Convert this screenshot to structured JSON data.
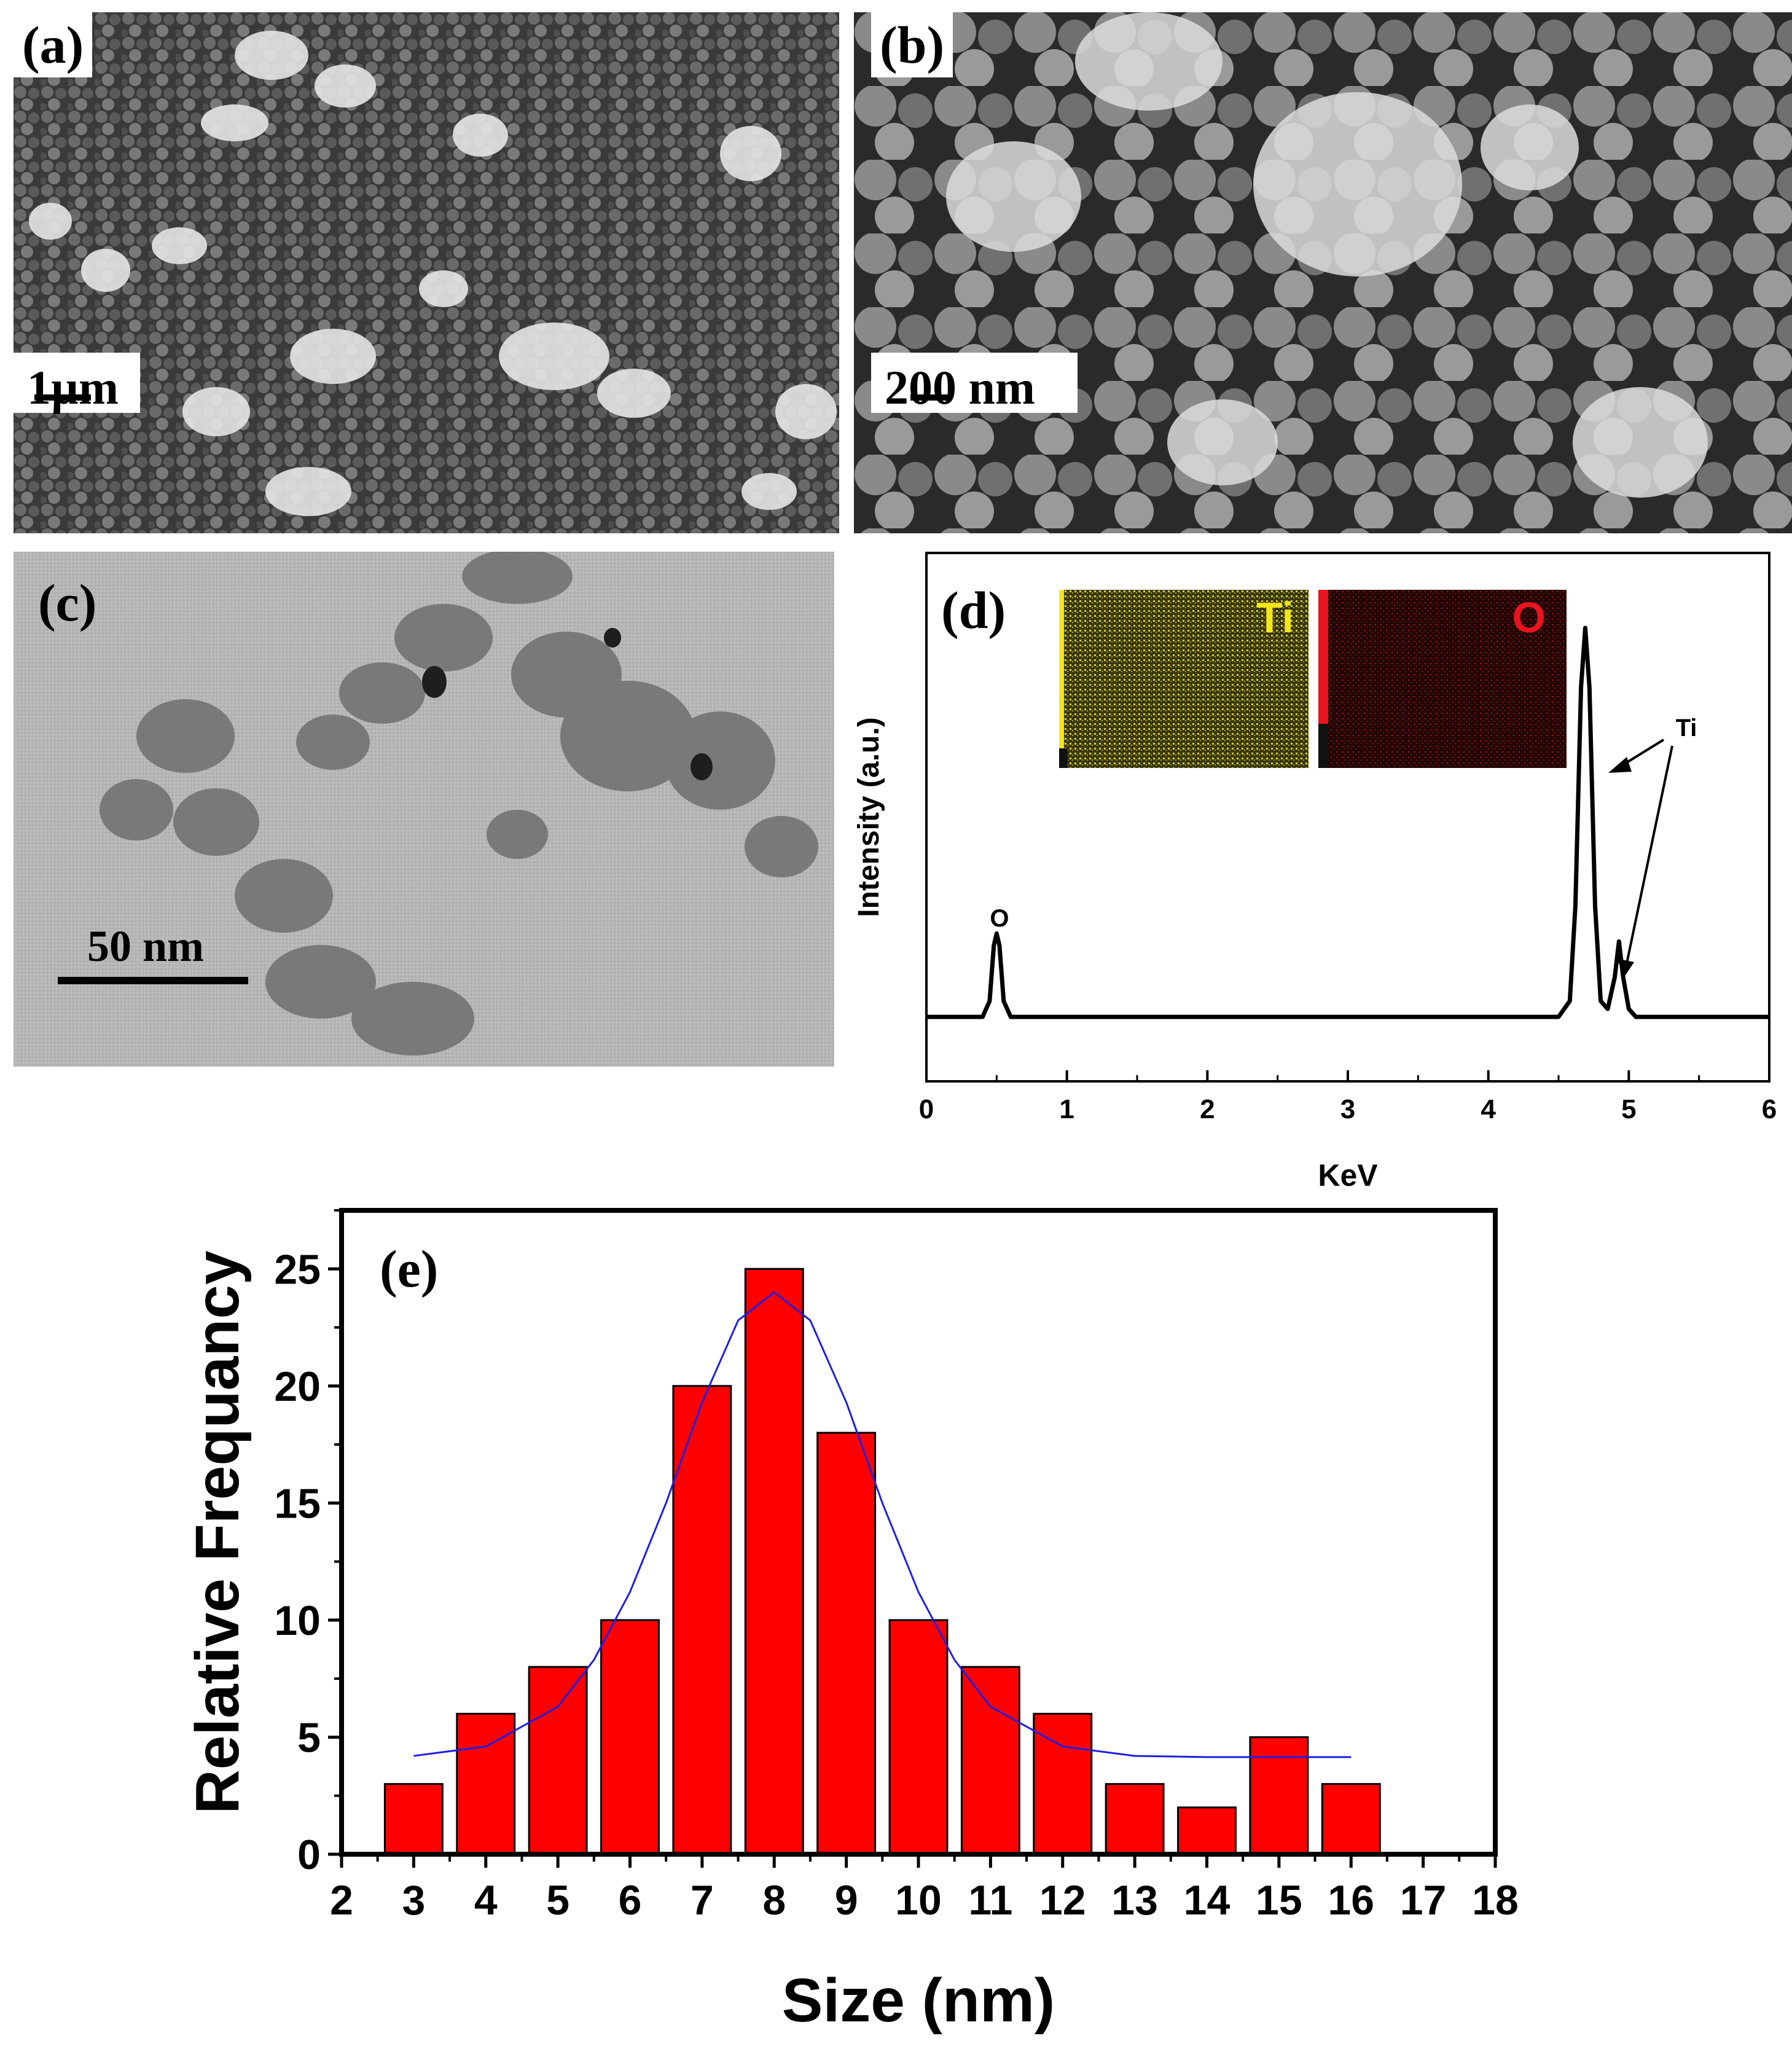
{
  "panels": {
    "a": {
      "label": "(a)",
      "scale_label": "1µm"
    },
    "b": {
      "label": "(b)",
      "scale_label": "200 nm"
    },
    "c": {
      "label": "(c)",
      "scale_label": "50 nm"
    },
    "d": {
      "label": "(d)"
    },
    "e": {
      "label": "(e)"
    }
  },
  "chart_data": [
    {
      "panel": "d",
      "type": "line",
      "xlabel": "KeV",
      "ylabel": "Intensity (a.u.)",
      "xlim": [
        0,
        6
      ],
      "x_ticks": [
        "0",
        "1",
        "2",
        "3",
        "4",
        "5",
        "6"
      ],
      "series": [
        {
          "color": "#000000",
          "x": [
            0,
            0.4,
            0.45,
            0.48,
            0.5,
            0.52,
            0.55,
            0.6,
            1.0,
            2.0,
            3.0,
            4.0,
            4.5,
            4.58,
            4.62,
            4.66,
            4.69,
            4.72,
            4.76,
            4.8,
            4.85,
            4.9,
            4.93,
            4.96,
            5.0,
            5.05,
            6.0
          ],
          "y": [
            0.02,
            0.02,
            0.06,
            0.2,
            0.23,
            0.2,
            0.06,
            0.02,
            0.02,
            0.02,
            0.02,
            0.02,
            0.02,
            0.06,
            0.3,
            0.85,
            1.0,
            0.85,
            0.3,
            0.06,
            0.04,
            0.12,
            0.21,
            0.12,
            0.04,
            0.02,
            0.02
          ]
        }
      ],
      "annotations": [
        {
          "text": "O",
          "x": 0.52
        },
        {
          "text": "Ti",
          "x": 4.7
        },
        {
          "text": "Ti",
          "x": 4.93
        }
      ],
      "insets": [
        {
          "label": "Ti",
          "color": "#f5e61a"
        },
        {
          "label": "O",
          "color": "#e8141e"
        }
      ]
    },
    {
      "panel": "e",
      "type": "bar",
      "xlabel": "Size (nm)",
      "ylabel": "Relative Frequancy",
      "xlim": [
        2,
        18
      ],
      "ylim": [
        0,
        27.5
      ],
      "x_ticks": [
        "2",
        "3",
        "4",
        "5",
        "6",
        "7",
        "8",
        "9",
        "10",
        "11",
        "12",
        "13",
        "14",
        "15",
        "16",
        "17",
        "18"
      ],
      "y_ticks": [
        "0",
        "5",
        "10",
        "15",
        "20",
        "25"
      ],
      "bar_color": "#ff0000",
      "fit_color": "#1f1fe0",
      "categories": [
        3,
        4,
        5,
        6,
        7,
        8,
        9,
        10,
        11,
        12,
        13,
        14,
        15,
        16
      ],
      "values": [
        3,
        6,
        8,
        10,
        20,
        25,
        18,
        10,
        8,
        6,
        3,
        2,
        5,
        3
      ],
      "fit": {
        "x": [
          3,
          4,
          5,
          5.5,
          6,
          6.5,
          7,
          7.5,
          8,
          8.5,
          9,
          9.5,
          10,
          10.5,
          11,
          12,
          13,
          14,
          15,
          16
        ],
        "y": [
          4.2,
          4.6,
          6.3,
          8.3,
          11.2,
          15.0,
          19.3,
          22.8,
          24.0,
          22.8,
          19.3,
          15.0,
          11.2,
          8.3,
          6.3,
          4.6,
          4.2,
          4.15,
          4.15,
          4.15
        ]
      }
    }
  ]
}
